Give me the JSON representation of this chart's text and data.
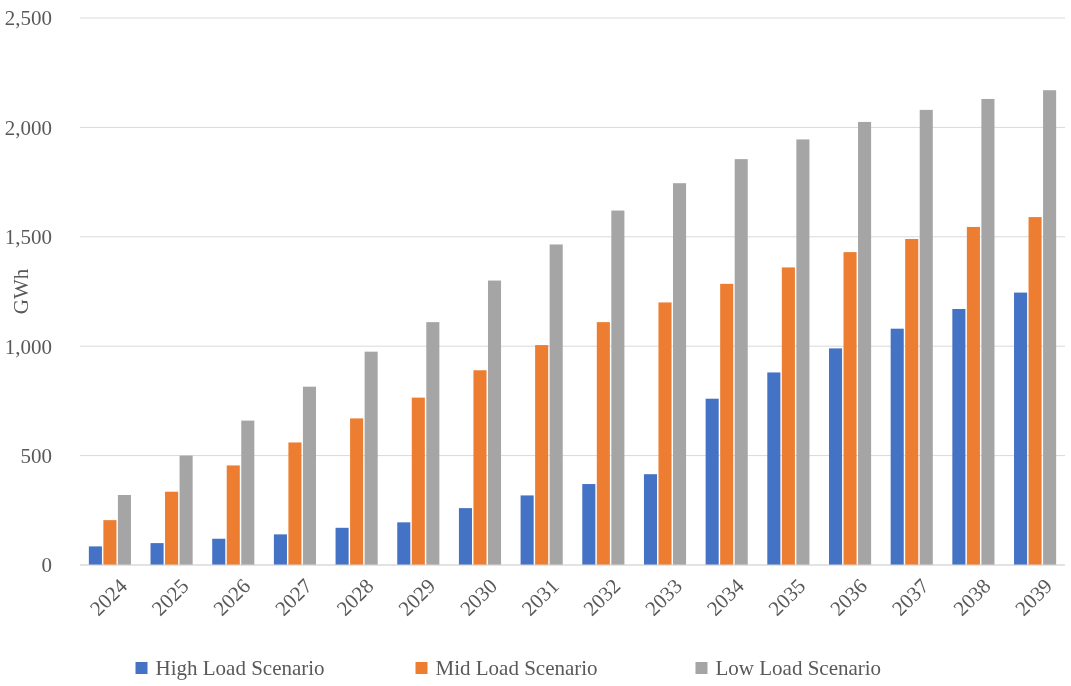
{
  "chart_data": {
    "type": "bar",
    "ylabel": "GWh",
    "categories": [
      "2024",
      "2025",
      "2026",
      "2027",
      "2028",
      "2029",
      "2030",
      "2031",
      "2032",
      "2033",
      "2034",
      "2035",
      "2036",
      "2037",
      "2038",
      "2039"
    ],
    "series": [
      {
        "name": "High Load Scenario",
        "color": "#4472c4",
        "values": [
          85,
          100,
          120,
          140,
          170,
          195,
          260,
          318,
          370,
          415,
          760,
          880,
          990,
          1080,
          1170,
          1245
        ]
      },
      {
        "name": "Mid Load Scenario",
        "color": "#ed7d31",
        "values": [
          205,
          335,
          455,
          560,
          670,
          765,
          890,
          1005,
          1110,
          1200,
          1285,
          1360,
          1430,
          1490,
          1545,
          1590
        ]
      },
      {
        "name": "Low Load Scenario",
        "color": "#a5a5a5",
        "values": [
          320,
          500,
          660,
          815,
          975,
          1110,
          1300,
          1465,
          1620,
          1745,
          1855,
          1945,
          2025,
          2080,
          2130,
          2170
        ]
      }
    ],
    "ylim": [
      0,
      2500
    ],
    "yticks": [
      {
        "value": 0,
        "label": "0"
      },
      {
        "value": 500,
        "label": "500"
      },
      {
        "value": 1000,
        "label": "1,000"
      },
      {
        "value": 1500,
        "label": "1,500"
      },
      {
        "value": 2000,
        "label": "2,000"
      },
      {
        "value": 2500,
        "label": "2,500"
      }
    ],
    "grid": "y",
    "legend": "bottom"
  }
}
